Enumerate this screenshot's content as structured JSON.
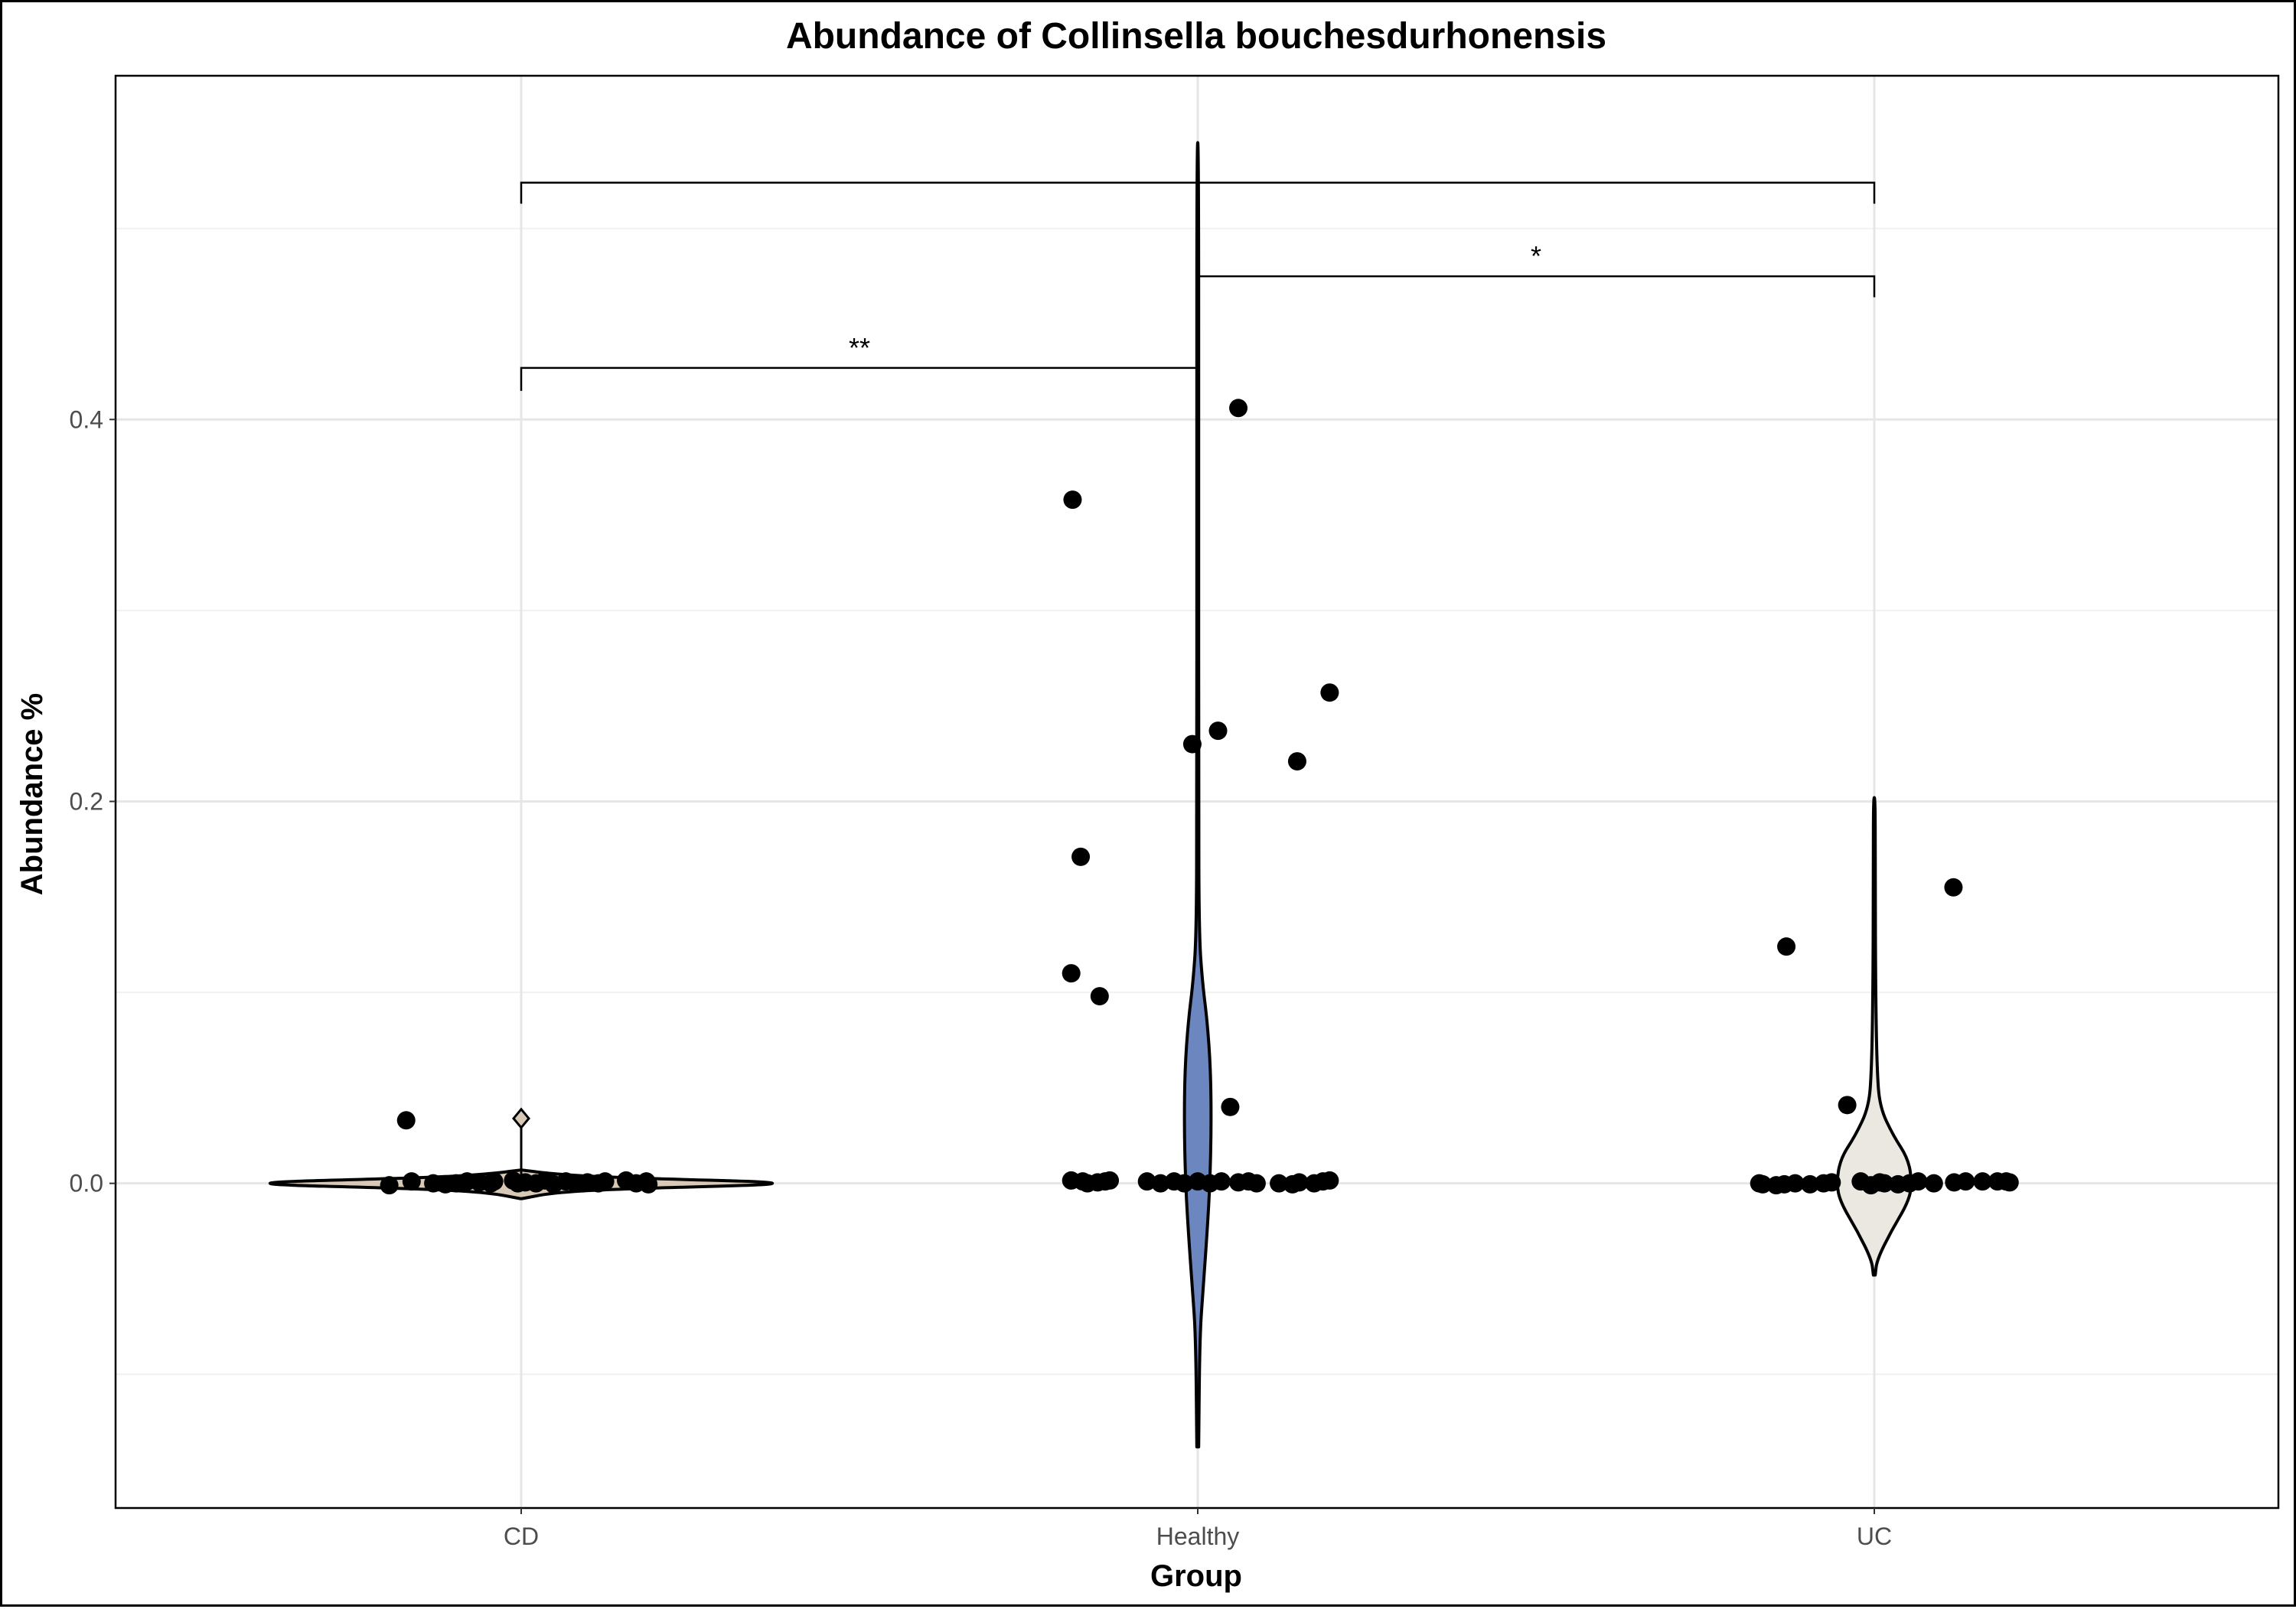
{
  "chart_data": {
    "type": "violin",
    "title": "Abundance of Collinsella bouchesdurhonensis",
    "xlabel": "Group",
    "ylabel": "Abundance %",
    "categories": [
      "CD",
      "Healthy",
      "UC"
    ],
    "ylim": [
      -0.17,
      0.58
    ],
    "yticks": [
      0.0,
      0.2,
      0.4
    ],
    "ytick_labels": [
      "0.0",
      "0.2",
      "0.4"
    ],
    "grid": true,
    "legend": "none",
    "colors": {
      "CD": "#d7c9b5",
      "Healthy": "#6c86bf",
      "UC": "#ebe7e1",
      "points": "#000000",
      "grid_major": "#e6e6e6",
      "grid_minor": "#f1f1f1",
      "axis_text": "#4d4d4d"
    },
    "violins": [
      {
        "group": "CD",
        "min": -0.008,
        "max": 0.007,
        "halfwidth": 0.45,
        "profile": [
          [
            -0.008,
            0.0
          ],
          [
            -0.005,
            0.1
          ],
          [
            -0.003,
            0.3
          ],
          [
            0.0,
            1.0
          ],
          [
            0.003,
            0.3
          ],
          [
            0.005,
            0.1
          ],
          [
            0.007,
            0.0
          ]
        ],
        "outlier_mark": 0.034
      },
      {
        "group": "Healthy",
        "min": -0.138,
        "max": 0.545,
        "halfwidth": 0.0,
        "profile": [
          [
            -0.138,
            0.0
          ],
          [
            -0.08,
            0.003
          ],
          [
            -0.055,
            0.008
          ],
          [
            -0.025,
            0.014
          ],
          [
            0.0,
            0.018
          ],
          [
            0.03,
            0.02
          ],
          [
            0.06,
            0.019
          ],
          [
            0.085,
            0.014
          ],
          [
            0.105,
            0.007
          ],
          [
            0.13,
            0.002
          ],
          [
            0.2,
            0.0008
          ],
          [
            0.35,
            0.0003
          ],
          [
            0.545,
            0.0
          ]
        ]
      },
      {
        "group": "UC",
        "min": -0.048,
        "max": 0.202,
        "halfwidth": 0.0,
        "profile": [
          [
            -0.048,
            0.0
          ],
          [
            -0.04,
            0.004
          ],
          [
            -0.025,
            0.025
          ],
          [
            -0.01,
            0.05
          ],
          [
            0.0,
            0.056
          ],
          [
            0.013,
            0.05
          ],
          [
            0.025,
            0.028
          ],
          [
            0.04,
            0.008
          ],
          [
            0.06,
            0.004
          ],
          [
            0.1,
            0.002
          ],
          [
            0.16,
            0.001
          ],
          [
            0.202,
            0.0
          ]
        ]
      }
    ],
    "points": [
      {
        "group": "CD",
        "values": [
          {
            "dx": -0.17,
            "y": 0.033
          },
          {
            "dx": -0.195,
            "y": -0.001
          },
          {
            "dx": -0.162,
            "y": 0.001
          },
          {
            "dx": -0.13,
            "y": 0.0
          },
          {
            "dx": -0.112,
            "y": -0.0005
          },
          {
            "dx": -0.096,
            "y": 0.0
          },
          {
            "dx": -0.08,
            "y": 0.001
          },
          {
            "dx": -0.062,
            "y": 0.0005
          },
          {
            "dx": -0.045,
            "y": 0.0
          },
          {
            "dx": -0.04,
            "y": 0.001
          },
          {
            "dx": -0.012,
            "y": 0.0015
          },
          {
            "dx": -0.005,
            "y": 0.0
          },
          {
            "dx": 0.006,
            "y": 0.0005
          },
          {
            "dx": 0.022,
            "y": 0.0
          },
          {
            "dx": 0.035,
            "y": 0.0015
          },
          {
            "dx": 0.048,
            "y": -0.0005
          },
          {
            "dx": 0.066,
            "y": 0.001
          },
          {
            "dx": 0.08,
            "y": 0.0
          },
          {
            "dx": 0.098,
            "y": 0.0005
          },
          {
            "dx": 0.114,
            "y": 0.0
          },
          {
            "dx": 0.124,
            "y": 0.001
          },
          {
            "dx": 0.155,
            "y": 0.0015
          },
          {
            "dx": 0.17,
            "y": 0.0
          },
          {
            "dx": 0.185,
            "y": 0.001
          },
          {
            "dx": 0.188,
            "y": -0.0005
          }
        ]
      },
      {
        "group": "Healthy",
        "values": [
          {
            "dx": -0.185,
            "y": 0.358
          },
          {
            "dx": 0.06,
            "y": 0.406
          },
          {
            "dx": 0.195,
            "y": 0.257
          },
          {
            "dx": 0.03,
            "y": 0.237
          },
          {
            "dx": -0.008,
            "y": 0.23
          },
          {
            "dx": 0.147,
            "y": 0.221
          },
          {
            "dx": -0.173,
            "y": 0.171
          },
          {
            "dx": -0.187,
            "y": 0.11
          },
          {
            "dx": -0.145,
            "y": 0.098
          },
          {
            "dx": 0.048,
            "y": 0.04
          },
          {
            "dx": -0.187,
            "y": 0.0015
          },
          {
            "dx": -0.17,
            "y": 0.001
          },
          {
            "dx": -0.163,
            "y": 0.0
          },
          {
            "dx": -0.148,
            "y": 0.0005
          },
          {
            "dx": -0.137,
            "y": 0.001
          },
          {
            "dx": -0.13,
            "y": 0.0015
          },
          {
            "dx": -0.075,
            "y": 0.001
          },
          {
            "dx": -0.055,
            "y": 0.0
          },
          {
            "dx": -0.035,
            "y": 0.001
          },
          {
            "dx": -0.02,
            "y": 0.0
          },
          {
            "dx": 0.0,
            "y": 0.001
          },
          {
            "dx": 0.018,
            "y": 0.0
          },
          {
            "dx": 0.035,
            "y": 0.001
          },
          {
            "dx": 0.06,
            "y": 0.0005
          },
          {
            "dx": 0.075,
            "y": 0.001
          },
          {
            "dx": 0.087,
            "y": 0.0
          },
          {
            "dx": 0.12,
            "y": 0.0
          },
          {
            "dx": 0.14,
            "y": -0.0005
          },
          {
            "dx": 0.15,
            "y": 0.0005
          },
          {
            "dx": 0.172,
            "y": 0.0
          },
          {
            "dx": 0.185,
            "y": 0.001
          },
          {
            "dx": 0.195,
            "y": 0.0015
          }
        ]
      },
      {
        "group": "UC",
        "values": [
          {
            "dx": 0.117,
            "y": 0.155
          },
          {
            "dx": -0.13,
            "y": 0.124
          },
          {
            "dx": -0.04,
            "y": 0.041
          },
          {
            "dx": -0.17,
            "y": 0.0
          },
          {
            "dx": -0.165,
            "y": -0.0005
          },
          {
            "dx": -0.145,
            "y": -0.001
          },
          {
            "dx": -0.133,
            "y": -0.0005
          },
          {
            "dx": -0.117,
            "y": 0.0
          },
          {
            "dx": -0.095,
            "y": -0.0005
          },
          {
            "dx": -0.075,
            "y": 0.0
          },
          {
            "dx": -0.063,
            "y": 0.0005
          },
          {
            "dx": -0.02,
            "y": 0.001
          },
          {
            "dx": -0.005,
            "y": -0.001
          },
          {
            "dx": 0.008,
            "y": 0.0005
          },
          {
            "dx": 0.015,
            "y": 0.0
          },
          {
            "dx": 0.035,
            "y": -0.0005
          },
          {
            "dx": 0.052,
            "y": 0.0
          },
          {
            "dx": 0.065,
            "y": 0.001
          },
          {
            "dx": 0.088,
            "y": 0.0
          },
          {
            "dx": 0.118,
            "y": 0.0005
          },
          {
            "dx": 0.135,
            "y": 0.001
          },
          {
            "dx": 0.16,
            "y": 0.001
          },
          {
            "dx": 0.182,
            "y": 0.001
          },
          {
            "dx": 0.195,
            "y": 0.001
          },
          {
            "dx": 0.2,
            "y": 0.0005
          }
        ]
      }
    ],
    "brackets": [
      {
        "from": "CD",
        "to": "UC",
        "y": 0.524,
        "tip": 0.513,
        "label": ""
      },
      {
        "from": "Healthy",
        "to": "UC",
        "y": 0.475,
        "tip": 0.464,
        "label": "*"
      },
      {
        "from": "CD",
        "to": "Healthy",
        "y": 0.427,
        "tip": 0.415,
        "label": "**"
      }
    ]
  }
}
